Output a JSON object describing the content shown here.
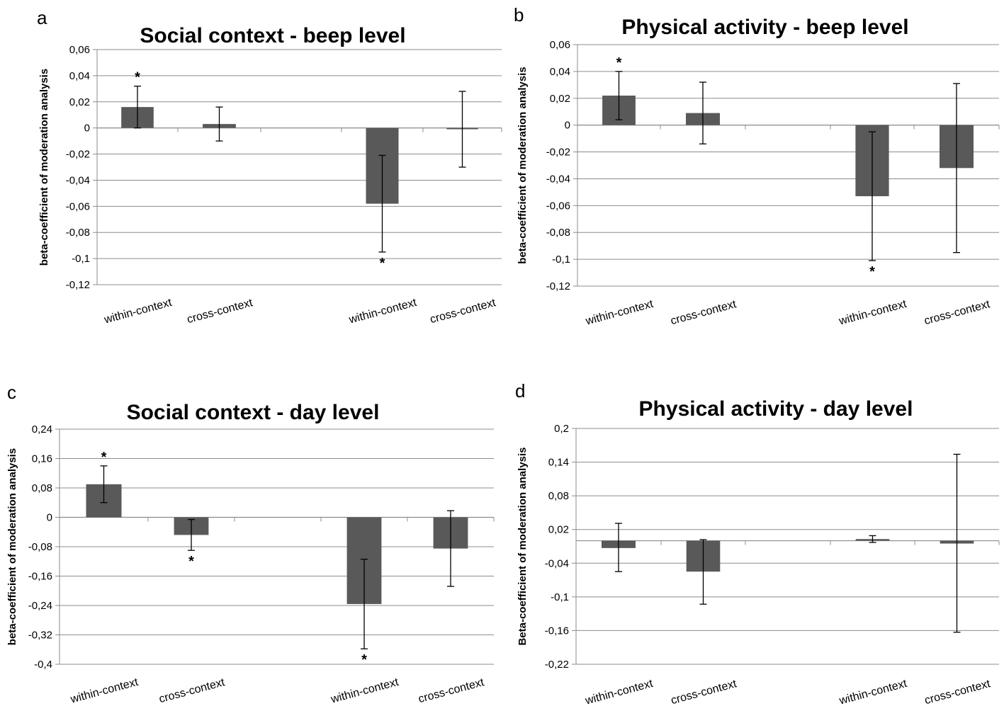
{
  "chart_data": [
    {
      "panel": "a",
      "type": "bar",
      "title": "Social context - beep level",
      "xlabel": "",
      "ylabel": "beta-coefficient of moderation analysis",
      "categories": [
        "within-context",
        "cross-context",
        "within-context",
        "cross-context"
      ],
      "values": [
        0.016,
        0.003,
        -0.058,
        -0.001
      ],
      "error_low": [
        0.0,
        -0.01,
        -0.095,
        -0.03
      ],
      "error_high": [
        0.032,
        0.016,
        -0.021,
        0.028
      ],
      "significant": [
        true,
        false,
        true,
        false
      ],
      "ylim": [
        -0.12,
        0.06
      ],
      "yticks": [
        "0,06",
        "0,04",
        "0,02",
        "0",
        "-0,02",
        "-0,04",
        "-0,06",
        "-0,08",
        "-0,1",
        "-0,12"
      ],
      "grid": true,
      "legend": "none",
      "bar_color": "#595959"
    },
    {
      "panel": "b",
      "type": "bar",
      "title": "Physical activity - beep level",
      "xlabel": "",
      "ylabel": "beta-coefficient of moderation analysis",
      "categories": [
        "within-context",
        "cross-context",
        "within-context",
        "cross-context"
      ],
      "values": [
        0.022,
        0.009,
        -0.053,
        -0.032
      ],
      "error_low": [
        0.004,
        -0.014,
        -0.101,
        -0.095
      ],
      "error_high": [
        0.04,
        0.032,
        -0.005,
        0.031
      ],
      "significant": [
        true,
        false,
        true,
        false
      ],
      "ylim": [
        -0.12,
        0.06
      ],
      "yticks": [
        "0,06",
        "0,04",
        "0,02",
        "0",
        "-0,02",
        "-0,04",
        "-0,06",
        "-0,08",
        "-0,1",
        "-0,12"
      ],
      "grid": true,
      "legend": "none",
      "bar_color": "#595959"
    },
    {
      "panel": "c",
      "type": "bar",
      "title": "Social context - day level",
      "xlabel": "",
      "ylabel": "beta-coefficient of moderation analysis",
      "categories": [
        "within-context",
        "cross-context",
        "within-context",
        "cross-context"
      ],
      "values": [
        0.09,
        -0.048,
        -0.236,
        -0.085
      ],
      "error_low": [
        0.04,
        -0.09,
        -0.358,
        -0.188
      ],
      "error_high": [
        0.14,
        -0.006,
        -0.114,
        0.018
      ],
      "significant": [
        true,
        true,
        true,
        false
      ],
      "ylim": [
        -0.4,
        0.24
      ],
      "yticks": [
        "0,24",
        "0,16",
        "0,08",
        "0",
        "-0,08",
        "-0,16",
        "-0,24",
        "-0,32",
        "-0,4"
      ],
      "grid": true,
      "legend": "none",
      "bar_color": "#595959"
    },
    {
      "panel": "d",
      "type": "bar",
      "title": "Physical activity - day level",
      "xlabel": "",
      "ylabel": "Beta-coefficient of moderation analysis",
      "categories": [
        "within-context",
        "cross-context",
        "within-context",
        "cross-context"
      ],
      "values": [
        -0.013,
        -0.055,
        0.003,
        -0.005
      ],
      "error_low": [
        -0.055,
        -0.113,
        -0.003,
        -0.163
      ],
      "error_high": [
        0.031,
        0.002,
        0.009,
        0.154
      ],
      "significant": [
        false,
        false,
        false,
        false
      ],
      "ylim": [
        -0.22,
        0.2
      ],
      "yticks": [
        "0,2",
        "0,14",
        "0,08",
        "0,02",
        "-0,04",
        "-0,1",
        "-0,16",
        "-0,22"
      ],
      "grid": true,
      "legend": "none",
      "bar_color": "#595959"
    }
  ]
}
